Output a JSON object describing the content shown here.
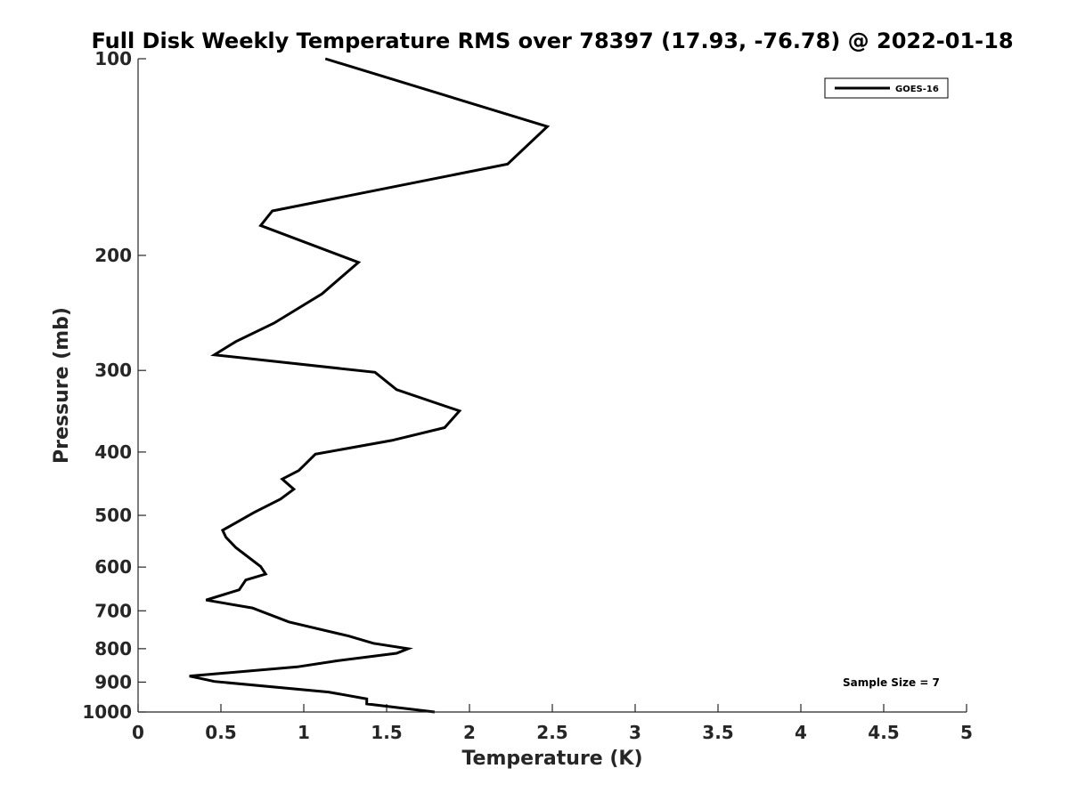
{
  "chart_data": {
    "type": "line",
    "title": "Full Disk Weekly Temperature RMS over 78397 (17.93, -76.78) @ 2022-01-18",
    "xlabel": "Temperature (K)",
    "ylabel": "Pressure (mb)",
    "xlim": [
      0,
      5
    ],
    "ylim": [
      1000,
      100
    ],
    "y_scale": "log",
    "y_reversed": true,
    "grid": false,
    "legend_placement": "top-right",
    "x_ticks": [
      "0",
      "0.5",
      "1",
      "1.5",
      "2",
      "2.5",
      "3",
      "3.5",
      "4",
      "4.5",
      "5"
    ],
    "y_ticks": [
      "100",
      "200",
      "300",
      "400",
      "500",
      "600",
      "700",
      "800",
      "900",
      "1000"
    ],
    "series": [
      {
        "name": "GOES-16",
        "color": "#000000",
        "x": [
          1.13,
          2.47,
          2.23,
          0.81,
          0.74,
          1.33,
          1.11,
          0.82,
          0.59,
          0.46,
          1.43,
          1.56,
          1.94,
          1.85,
          1.53,
          1.07,
          0.97,
          0.87,
          0.94,
          0.86,
          0.7,
          0.51,
          0.53,
          0.59,
          0.74,
          0.77,
          0.65,
          0.61,
          0.41,
          0.69,
          0.91,
          1.27,
          1.42,
          1.63,
          1.56,
          1.2,
          0.96,
          0.31,
          0.46,
          1.15,
          1.38,
          1.38,
          1.79
        ],
        "y": [
          100,
          127,
          145,
          171,
          180,
          205,
          229,
          254,
          271,
          284,
          302,
          321,
          346,
          367,
          384,
          403,
          427,
          440,
          456,
          472,
          495,
          527,
          540,
          560,
          599,
          615,
          628,
          650,
          674,
          693,
          728,
          765,
          785,
          800,
          813,
          835,
          853,
          881,
          898,
          932,
          955,
          972,
          1000
        ]
      }
    ],
    "annotations": [
      "Sample Size = 7"
    ]
  }
}
